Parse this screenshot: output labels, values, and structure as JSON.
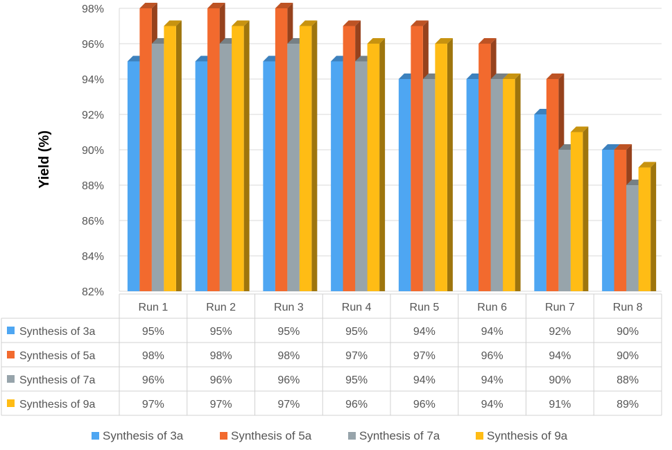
{
  "chart_data": {
    "type": "bar",
    "categories": [
      "Run 1",
      "Run 2",
      "Run 3",
      "Run 4",
      "Run 5",
      "Run 6",
      "Run 7",
      "Run 8"
    ],
    "series": [
      {
        "name": "Synthesis of 3a",
        "values": [
          95,
          95,
          95,
          95,
          94,
          94,
          92,
          90
        ],
        "color": "#4EA6F2"
      },
      {
        "name": "Synthesis of 5a",
        "values": [
          98,
          98,
          98,
          97,
          97,
          96,
          94,
          90
        ],
        "color": "#F26A2E"
      },
      {
        "name": "Synthesis of 7a",
        "values": [
          96,
          96,
          96,
          95,
          94,
          94,
          90,
          88
        ],
        "color": "#97A4AB"
      },
      {
        "name": "Synthesis of 9a",
        "values": [
          97,
          97,
          97,
          96,
          96,
          94,
          91,
          89
        ],
        "color": "#FFBC15"
      }
    ],
    "table_values": [
      [
        "95%",
        "95%",
        "95%",
        "95%",
        "94%",
        "94%",
        "92%",
        "90%"
      ],
      [
        "98%",
        "98%",
        "98%",
        "97%",
        "97%",
        "96%",
        "94%",
        "90%"
      ],
      [
        "96%",
        "96%",
        "96%",
        "95%",
        "94%",
        "94%",
        "90%",
        "88%"
      ],
      [
        "97%",
        "97%",
        "97%",
        "96%",
        "96%",
        "94%",
        "91%",
        "89%"
      ]
    ],
    "ylabel": "Yield (%)",
    "xlabel": "",
    "ylim": [
      82,
      98
    ],
    "yticks": [
      "82%",
      "84%",
      "86%",
      "88%",
      "90%",
      "92%",
      "94%",
      "96%",
      "98%"
    ],
    "ytick_values": [
      82,
      84,
      86,
      88,
      90,
      92,
      94,
      96,
      98
    ],
    "grid": true,
    "legend_position": "bottom",
    "data_table": true,
    "style": "3d-column"
  }
}
